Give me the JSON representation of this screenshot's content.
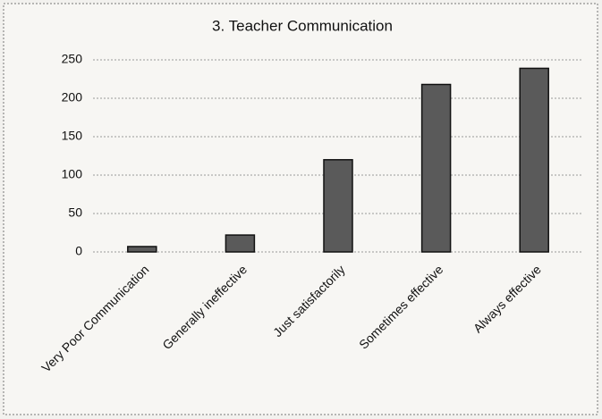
{
  "chart_data": {
    "type": "bar",
    "title": "3. Teacher Communication",
    "categories": [
      "Very Poor Communication",
      "Generally ineffective",
      "Just satisfactorily",
      "Sometimes effective",
      "Always effective"
    ],
    "values": [
      7,
      22,
      120,
      218,
      239
    ],
    "color": "#5a5a5a",
    "ylim": [
      0,
      250
    ],
    "yticks": [
      0,
      50,
      100,
      150,
      200,
      250
    ],
    "grid": true
  }
}
